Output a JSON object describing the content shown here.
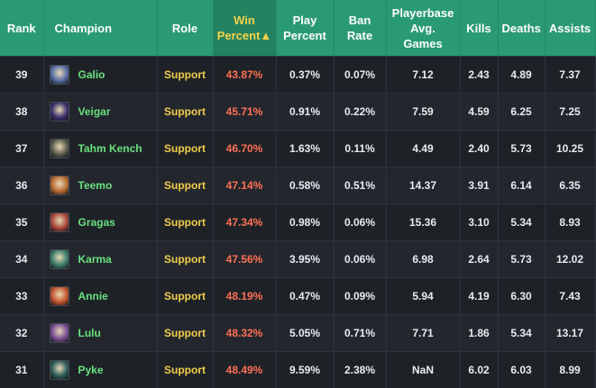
{
  "headers": {
    "rank": "Rank",
    "champion": "Champion",
    "role": "Role",
    "win_line1": "Win",
    "win_line2": "Percent▲",
    "play_line1": "Play",
    "play_line2": "Percent",
    "ban_line1": "Ban",
    "ban_line2": "Rate",
    "avg_line1": "Playerbase",
    "avg_line2": "Avg.",
    "avg_line3": "Games",
    "kills": "Kills",
    "deaths": "Deaths",
    "assists": "Assists"
  },
  "rows": [
    {
      "rank": "39",
      "name": "Galio",
      "role": "Support",
      "win": "43.87%",
      "play": "0.37%",
      "ban": "0.07%",
      "games": "7.12",
      "kills": "2.43",
      "deaths": "4.89",
      "assists": "7.37",
      "icon_color": "#5a6fa8"
    },
    {
      "rank": "38",
      "name": "Veigar",
      "role": "Support",
      "win": "45.71%",
      "play": "0.91%",
      "ban": "0.22%",
      "games": "7.59",
      "kills": "4.59",
      "deaths": "6.25",
      "assists": "7.25",
      "icon_color": "#3b2f6b"
    },
    {
      "rank": "37",
      "name": "Tahm Kench",
      "role": "Support",
      "win": "46.70%",
      "play": "1.63%",
      "ban": "0.11%",
      "games": "4.49",
      "kills": "2.40",
      "deaths": "5.73",
      "assists": "10.25",
      "icon_color": "#5b5a4e"
    },
    {
      "rank": "36",
      "name": "Teemo",
      "role": "Support",
      "win": "47.14%",
      "play": "0.58%",
      "ban": "0.51%",
      "games": "14.37",
      "kills": "3.91",
      "deaths": "6.14",
      "assists": "6.35",
      "icon_color": "#b86b32"
    },
    {
      "rank": "35",
      "name": "Gragas",
      "role": "Support",
      "win": "47.34%",
      "play": "0.98%",
      "ban": "0.06%",
      "games": "15.36",
      "kills": "3.10",
      "deaths": "5.34",
      "assists": "8.93",
      "icon_color": "#a9463a"
    },
    {
      "rank": "34",
      "name": "Karma",
      "role": "Support",
      "win": "47.56%",
      "play": "3.95%",
      "ban": "0.06%",
      "games": "6.98",
      "kills": "2.64",
      "deaths": "5.73",
      "assists": "12.02",
      "icon_color": "#3e7d6a"
    },
    {
      "rank": "33",
      "name": "Annie",
      "role": "Support",
      "win": "48.19%",
      "play": "0.47%",
      "ban": "0.09%",
      "games": "5.94",
      "kills": "4.19",
      "deaths": "6.30",
      "assists": "7.43",
      "icon_color": "#c3542f"
    },
    {
      "rank": "32",
      "name": "Lulu",
      "role": "Support",
      "win": "48.32%",
      "play": "5.05%",
      "ban": "0.71%",
      "games": "7.71",
      "kills": "1.86",
      "deaths": "5.34",
      "assists": "13.17",
      "icon_color": "#7a4e93"
    },
    {
      "rank": "31",
      "name": "Pyke",
      "role": "Support",
      "win": "48.49%",
      "play": "9.59%",
      "ban": "2.38%",
      "games": "NaN",
      "kills": "6.02",
      "deaths": "6.03",
      "assists": "8.99",
      "icon_color": "#2f5c5a"
    }
  ]
}
